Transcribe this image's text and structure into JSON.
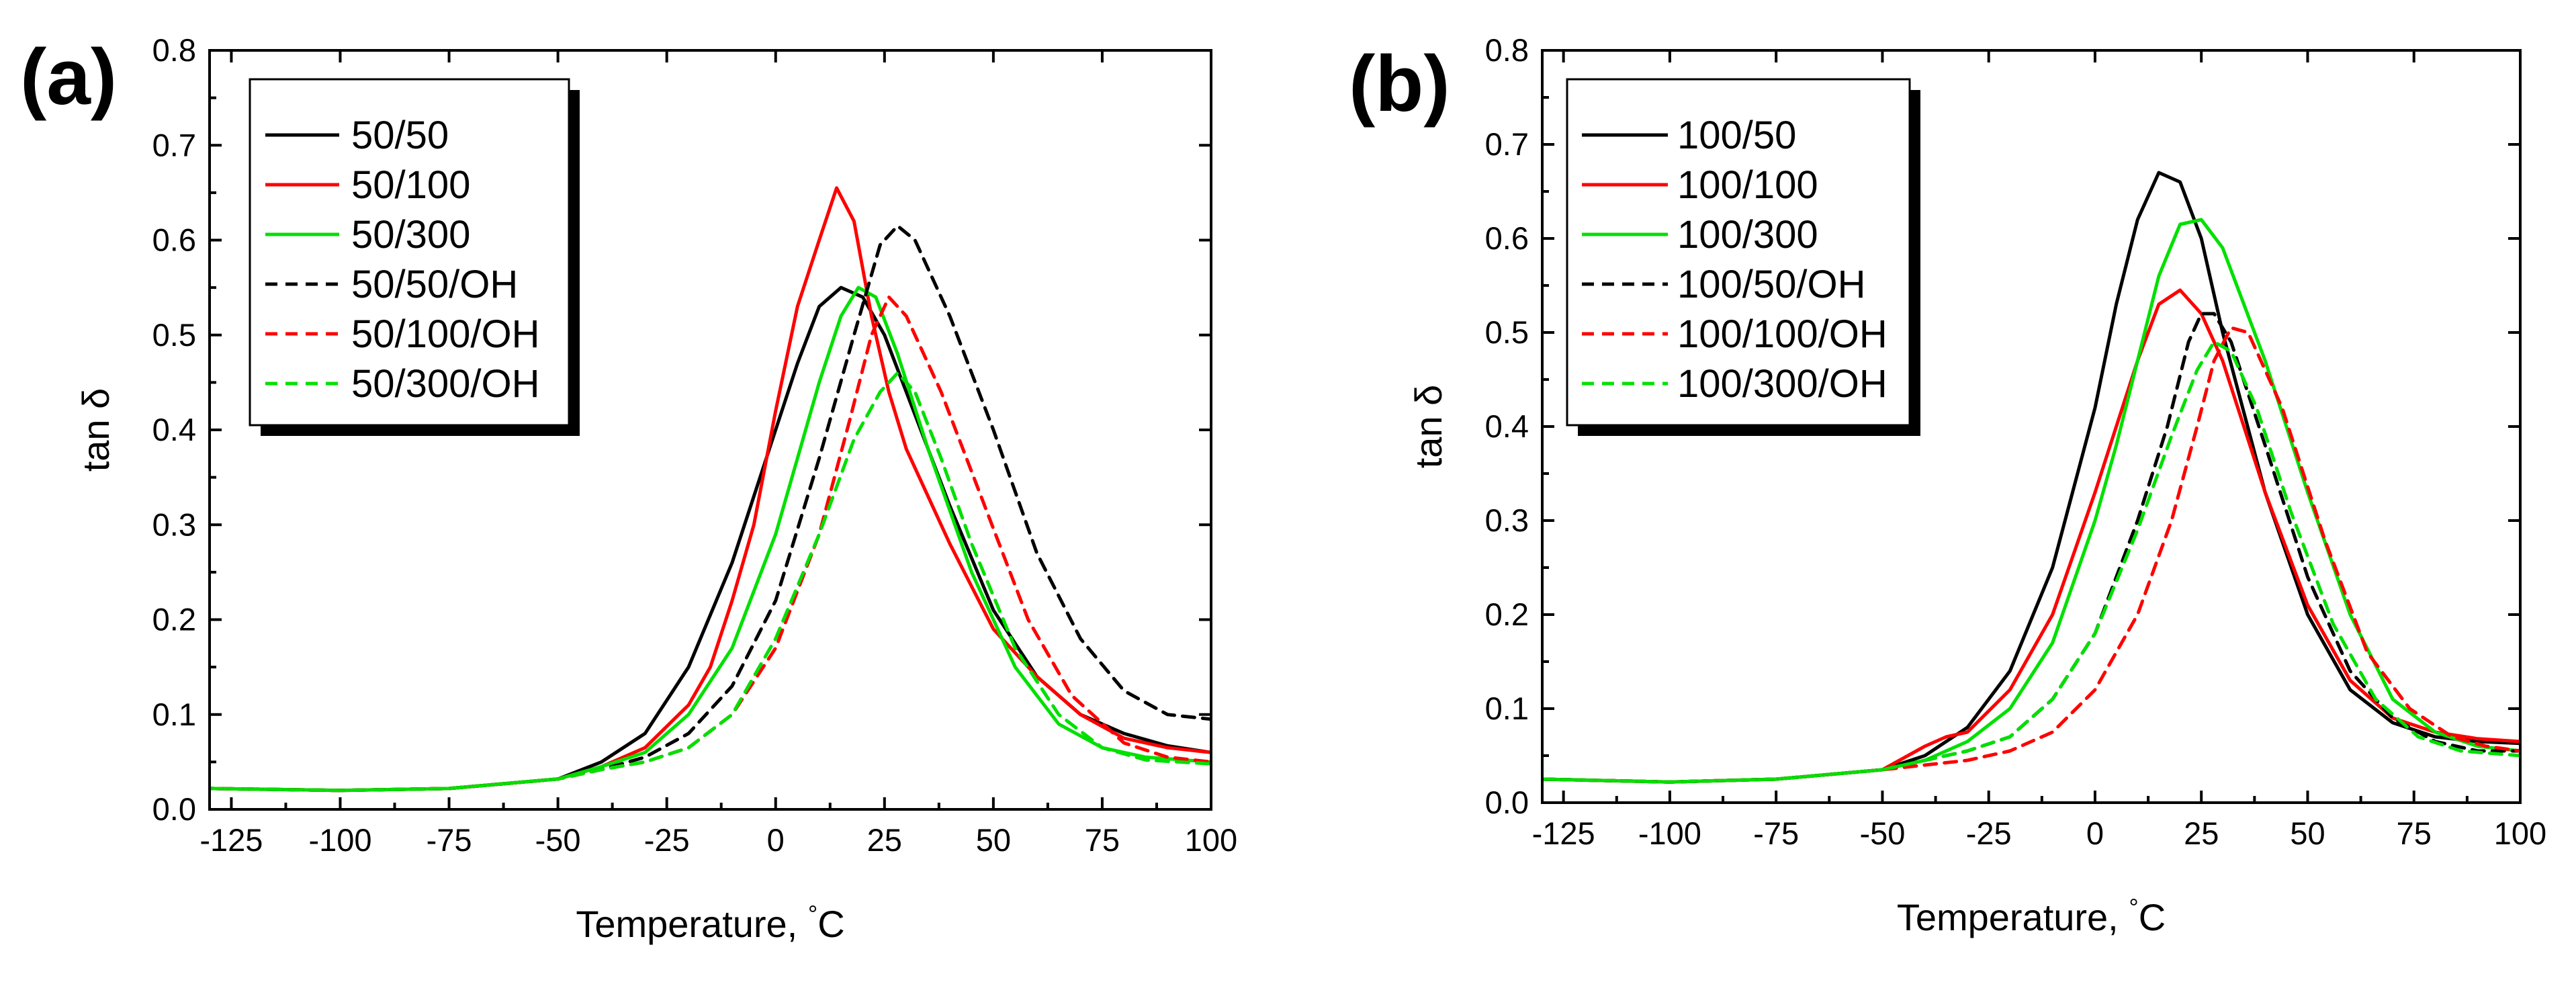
{
  "chart_data": [
    {
      "panel_label": "(a)",
      "type": "line",
      "xlabel": "Temperature, °C",
      "xlabel_main": "Temperature, ",
      "xlabel_unit": "°C",
      "ylabel": "tan δ",
      "xlim": [
        -130,
        100
      ],
      "ylim": [
        0.0,
        0.8
      ],
      "xticks": [
        -125,
        -100,
        -75,
        -50,
        -25,
        0,
        25,
        50,
        75,
        100
      ],
      "xtick_labels": [
        "-125",
        "-100",
        "-75",
        "-50",
        "-25",
        "0",
        "25",
        "50",
        "75",
        "100"
      ],
      "yticks": [
        0.0,
        0.1,
        0.2,
        0.3,
        0.4,
        0.5,
        0.6,
        0.7,
        0.8
      ],
      "ytick_labels": [
        "0.0",
        "0.1",
        "0.2",
        "0.3",
        "0.4",
        "0.5",
        "0.6",
        "0.7",
        "0.8"
      ],
      "grid": false,
      "legend_position": "top-left",
      "series": [
        {
          "name": "50/50",
          "color": "#000000",
          "dash": "solid",
          "x": [
            -130,
            -100,
            -75,
            -50,
            -40,
            -30,
            -20,
            -10,
            0,
            5,
            10,
            15,
            20,
            25,
            30,
            40,
            50,
            60,
            70,
            80,
            90,
            100
          ],
          "y": [
            0.022,
            0.02,
            0.022,
            0.032,
            0.05,
            0.08,
            0.15,
            0.26,
            0.4,
            0.47,
            0.53,
            0.55,
            0.54,
            0.5,
            0.44,
            0.32,
            0.21,
            0.14,
            0.1,
            0.08,
            0.067,
            0.06
          ]
        },
        {
          "name": "50/100",
          "color": "#ff0000",
          "dash": "solid",
          "x": [
            -130,
            -100,
            -75,
            -50,
            -40,
            -30,
            -20,
            -15,
            -10,
            -5,
            0,
            5,
            10,
            14,
            18,
            22,
            26,
            30,
            40,
            50,
            60,
            70,
            80,
            90,
            100
          ],
          "y": [
            0.022,
            0.02,
            0.022,
            0.032,
            0.045,
            0.065,
            0.11,
            0.15,
            0.22,
            0.3,
            0.42,
            0.53,
            0.6,
            0.655,
            0.62,
            0.52,
            0.44,
            0.38,
            0.28,
            0.19,
            0.14,
            0.1,
            0.075,
            0.065,
            0.06
          ]
        },
        {
          "name": "50/300",
          "color": "#00e000",
          "dash": "solid",
          "x": [
            -130,
            -100,
            -75,
            -50,
            -40,
            -30,
            -20,
            -10,
            0,
            5,
            10,
            15,
            19,
            23,
            28,
            35,
            45,
            55,
            65,
            75,
            85,
            100
          ],
          "y": [
            0.022,
            0.02,
            0.022,
            0.032,
            0.045,
            0.06,
            0.1,
            0.17,
            0.29,
            0.37,
            0.45,
            0.52,
            0.55,
            0.54,
            0.48,
            0.38,
            0.25,
            0.15,
            0.09,
            0.065,
            0.055,
            0.05
          ]
        },
        {
          "name": "50/50/OH",
          "color": "#000000",
          "dash": "dashed",
          "x": [
            -130,
            -100,
            -75,
            -50,
            -40,
            -30,
            -20,
            -10,
            0,
            10,
            18,
            24,
            28,
            32,
            40,
            50,
            60,
            70,
            80,
            90,
            100
          ],
          "y": [
            0.022,
            0.02,
            0.022,
            0.032,
            0.042,
            0.055,
            0.08,
            0.13,
            0.22,
            0.37,
            0.5,
            0.595,
            0.615,
            0.6,
            0.52,
            0.4,
            0.27,
            0.18,
            0.125,
            0.1,
            0.095
          ]
        },
        {
          "name": "50/100/OH",
          "color": "#ff0000",
          "dash": "dashed",
          "x": [
            -130,
            -100,
            -75,
            -50,
            -40,
            -30,
            -20,
            -10,
            0,
            10,
            17,
            22,
            26,
            30,
            38,
            48,
            58,
            68,
            80,
            90,
            100
          ],
          "y": [
            0.022,
            0.02,
            0.022,
            0.032,
            0.042,
            0.05,
            0.065,
            0.1,
            0.17,
            0.29,
            0.41,
            0.5,
            0.54,
            0.52,
            0.44,
            0.32,
            0.2,
            0.12,
            0.07,
            0.055,
            0.05
          ]
        },
        {
          "name": "50/300/OH",
          "color": "#00e000",
          "dash": "dashed",
          "x": [
            -130,
            -100,
            -75,
            -50,
            -40,
            -30,
            -20,
            -10,
            0,
            10,
            18,
            24,
            28,
            32,
            38,
            45,
            55,
            65,
            75,
            85,
            100
          ],
          "y": [
            0.022,
            0.02,
            0.022,
            0.032,
            0.042,
            0.05,
            0.065,
            0.1,
            0.18,
            0.29,
            0.39,
            0.44,
            0.46,
            0.44,
            0.37,
            0.28,
            0.17,
            0.1,
            0.065,
            0.052,
            0.048
          ]
        }
      ]
    },
    {
      "panel_label": "(b)",
      "type": "line",
      "xlabel": "Temperature, °C",
      "xlabel_main": "Temperature, ",
      "xlabel_unit": "°C",
      "ylabel": "tan δ",
      "xlim": [
        -130,
        100
      ],
      "ylim": [
        0.0,
        0.8
      ],
      "xticks": [
        -125,
        -100,
        -75,
        -50,
        -25,
        0,
        25,
        50,
        75,
        100
      ],
      "xtick_labels": [
        "-125",
        "-100",
        "-75",
        "-50",
        "-25",
        "0",
        "25",
        "50",
        "75",
        "100"
      ],
      "yticks": [
        0.0,
        0.1,
        0.2,
        0.3,
        0.4,
        0.5,
        0.6,
        0.7,
        0.8
      ],
      "ytick_labels": [
        "0.0",
        "0.1",
        "0.2",
        "0.3",
        "0.4",
        "0.5",
        "0.6",
        "0.7",
        "0.8"
      ],
      "grid": false,
      "legend_position": "top-left",
      "series": [
        {
          "name": "100/50",
          "color": "#000000",
          "dash": "solid",
          "x": [
            -130,
            -100,
            -75,
            -50,
            -40,
            -30,
            -20,
            -10,
            0,
            5,
            10,
            15,
            20,
            25,
            30,
            40,
            50,
            60,
            70,
            80,
            90,
            100
          ],
          "y": [
            0.025,
            0.022,
            0.025,
            0.035,
            0.05,
            0.08,
            0.14,
            0.25,
            0.42,
            0.53,
            0.62,
            0.67,
            0.66,
            0.6,
            0.5,
            0.33,
            0.2,
            0.12,
            0.085,
            0.07,
            0.065,
            0.063
          ]
        },
        {
          "name": "100/100",
          "color": "#ff0000",
          "dash": "solid",
          "x": [
            -130,
            -100,
            -75,
            -50,
            -40,
            -35,
            -30,
            -20,
            -10,
            0,
            5,
            10,
            15,
            20,
            25,
            30,
            40,
            50,
            60,
            70,
            80,
            90,
            100
          ],
          "y": [
            0.025,
            0.022,
            0.025,
            0.035,
            0.06,
            0.07,
            0.075,
            0.12,
            0.2,
            0.33,
            0.4,
            0.47,
            0.53,
            0.545,
            0.52,
            0.47,
            0.33,
            0.21,
            0.13,
            0.09,
            0.075,
            0.068,
            0.065
          ]
        },
        {
          "name": "100/300",
          "color": "#00e000",
          "dash": "solid",
          "x": [
            -130,
            -100,
            -75,
            -50,
            -40,
            -30,
            -20,
            -10,
            0,
            5,
            10,
            15,
            20,
            25,
            30,
            40,
            50,
            60,
            70,
            80,
            90,
            100
          ],
          "y": [
            0.025,
            0.022,
            0.025,
            0.035,
            0.045,
            0.065,
            0.1,
            0.17,
            0.3,
            0.38,
            0.47,
            0.56,
            0.615,
            0.62,
            0.59,
            0.47,
            0.33,
            0.2,
            0.11,
            0.075,
            0.06,
            0.055
          ]
        },
        {
          "name": "100/50/OH",
          "color": "#000000",
          "dash": "dashed",
          "x": [
            -130,
            -100,
            -75,
            -50,
            -40,
            -30,
            -20,
            -10,
            0,
            10,
            17,
            22,
            25,
            28,
            32,
            40,
            50,
            60,
            70,
            80,
            90,
            100
          ],
          "y": [
            0.025,
            0.022,
            0.025,
            0.035,
            0.045,
            0.055,
            0.07,
            0.11,
            0.18,
            0.3,
            0.4,
            0.49,
            0.52,
            0.52,
            0.49,
            0.38,
            0.24,
            0.14,
            0.09,
            0.065,
            0.055,
            0.055
          ]
        },
        {
          "name": "100/100/OH",
          "color": "#ff0000",
          "dash": "dashed",
          "x": [
            -130,
            -100,
            -75,
            -50,
            -40,
            -30,
            -20,
            -10,
            0,
            10,
            18,
            24,
            28,
            32,
            36,
            44,
            54,
            64,
            74,
            84,
            92,
            100
          ],
          "y": [
            0.025,
            0.022,
            0.025,
            0.035,
            0.04,
            0.045,
            0.055,
            0.075,
            0.12,
            0.2,
            0.3,
            0.4,
            0.47,
            0.505,
            0.5,
            0.42,
            0.28,
            0.16,
            0.1,
            0.07,
            0.06,
            0.055
          ]
        },
        {
          "name": "100/300/OH",
          "color": "#00e000",
          "dash": "dashed",
          "x": [
            -130,
            -100,
            -75,
            -50,
            -40,
            -30,
            -20,
            -10,
            0,
            10,
            18,
            24,
            28,
            32,
            38,
            46,
            56,
            66,
            76,
            86,
            100
          ],
          "y": [
            0.025,
            0.022,
            0.025,
            0.035,
            0.045,
            0.055,
            0.07,
            0.11,
            0.18,
            0.29,
            0.39,
            0.46,
            0.49,
            0.48,
            0.42,
            0.31,
            0.19,
            0.11,
            0.07,
            0.055,
            0.05
          ]
        }
      ]
    }
  ]
}
